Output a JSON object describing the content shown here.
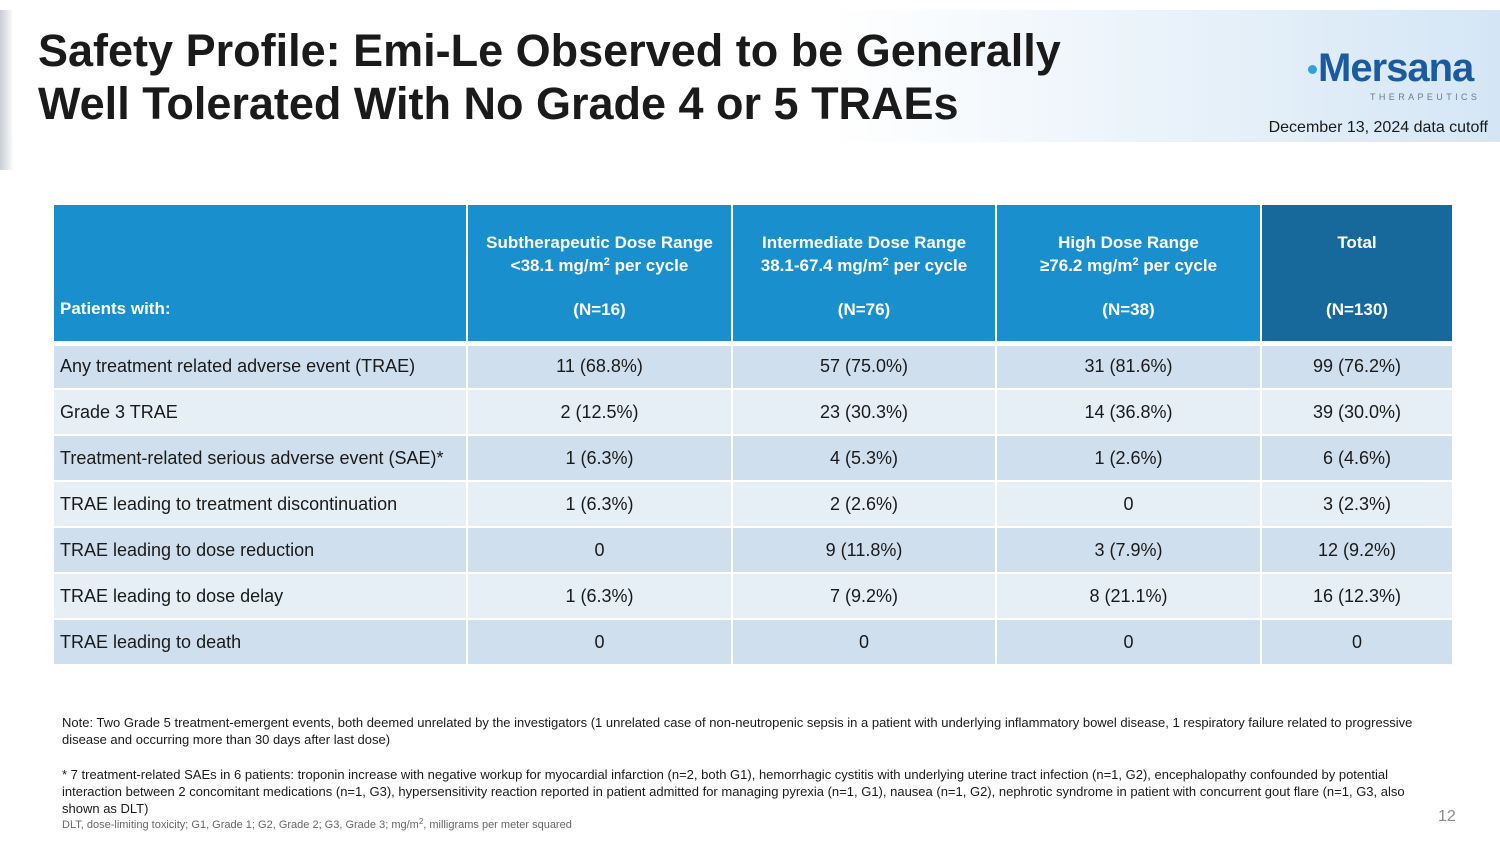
{
  "header": {
    "title_line1": "Safety Profile: Emi-Le Observed to be Generally",
    "title_line2": "Well Tolerated With No Grade 4 or 5 TRAEs",
    "cutoff": "December 13, 2024 data cutoff"
  },
  "logo": {
    "word": "Mersana",
    "sub": "THERAPEUTICS",
    "color": "#1b5a9e",
    "dot_color": "#2ea3e0"
  },
  "table": {
    "header_color": "#1a8fce",
    "total_header_color": "#16699a",
    "columns": [
      {
        "label": "Patients with:"
      },
      {
        "line1": "Subtherapeutic Dose Range",
        "line2_pre": "<38.1 mg/m",
        "line2_sup": "2",
        "line2_post": " per cycle",
        "n": "(N=16)"
      },
      {
        "line1": "Intermediate Dose Range",
        "line2_pre": "38.1-67.4 mg/m",
        "line2_sup": "2",
        "line2_post": " per cycle",
        "n": "(N=76)"
      },
      {
        "line1": "High Dose Range",
        "line2_pre": "≥76.2 mg/m",
        "line2_sup": "2",
        "line2_post": " per cycle",
        "n": "(N=38)"
      },
      {
        "line1": "Total",
        "n": "(N=130)"
      }
    ],
    "rows": [
      {
        "label": "Any treatment related adverse event (TRAE)",
        "values": [
          "11 (68.8%)",
          "57 (75.0%)",
          "31 (81.6%)",
          "99 (76.2%)"
        ]
      },
      {
        "label": "Grade 3 TRAE",
        "values": [
          "2 (12.5%)",
          "23 (30.3%)",
          "14 (36.8%)",
          "39 (30.0%)"
        ]
      },
      {
        "label": "Treatment-related serious adverse event (SAE)*",
        "values": [
          "1 (6.3%)",
          "4 (5.3%)",
          "1 (2.6%)",
          "6 (4.6%)"
        ]
      },
      {
        "label": "TRAE leading to treatment discontinuation",
        "values": [
          "1 (6.3%)",
          "2 (2.6%)",
          "0",
          "3 (2.3%)"
        ]
      },
      {
        "label": "TRAE leading to dose reduction",
        "values": [
          "0",
          "9 (11.8%)",
          "3 (7.9%)",
          "12 (9.2%)"
        ]
      },
      {
        "label": "TRAE leading to dose delay",
        "values": [
          "1 (6.3%)",
          "7 (9.2%)",
          "8 (21.1%)",
          "16 (12.3%)"
        ]
      },
      {
        "label": "TRAE leading to death",
        "values": [
          "0",
          "0",
          "0",
          "0"
        ]
      }
    ]
  },
  "notes": {
    "note1": "Note: Two Grade 5 treatment-emergent events, both deemed unrelated by the investigators (1 unrelated case of non-neutropenic sepsis in a patient with underlying inflammatory bowel disease, 1 respiratory failure related to progressive disease and occurring more than 30 days after last dose)",
    "note2": "* 7 treatment-related SAEs in 6 patients: troponin increase with negative workup for myocardial infarction (n=2, both G1), hemorrhagic cystitis with underlying uterine tract infection (n=1, G2), encephalopathy confounded by potential interaction between 2 concomitant medications (n=1, G3), hypersensitivity reaction reported in patient admitted for managing pyrexia (n=1, G1), nausea (n=1, G2), nephrotic syndrome in patient with concurrent gout flare (n=1, G3, also shown as DLT)",
    "abbrev_pre": "DLT, dose-limiting toxicity; G1, Grade 1; G2, Grade 2; G3, Grade 3; mg/m",
    "abbrev_sup": "2",
    "abbrev_post": ", milligrams per meter squared"
  },
  "page_number": "12"
}
